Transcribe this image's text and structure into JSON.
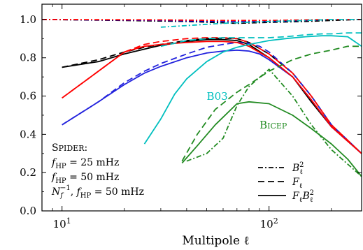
{
  "chart_data": {
    "type": "line",
    "title": "",
    "xlabel": "Multipole ℓ",
    "ylabel": "",
    "xscale": "log",
    "xlim": [
      8,
      280
    ],
    "ylim": [
      0.0,
      1.08
    ],
    "grid": false,
    "x_ticks": [
      {
        "value": 10,
        "label": "10¹"
      },
      {
        "value": 100,
        "label": "10²"
      }
    ],
    "y_ticks": [
      {
        "value": 0.0,
        "label": "0.0"
      },
      {
        "value": 0.2,
        "label": "0.2"
      },
      {
        "value": 0.4,
        "label": "0.4"
      },
      {
        "value": 0.6,
        "label": "0.6"
      },
      {
        "value": 0.8,
        "label": "0.8"
      },
      {
        "value": 1.0,
        "label": "1.0"
      }
    ],
    "series": [
      {
        "color": "#000000",
        "style": "dashdot",
        "x": [
          8,
          20,
          40,
          70,
          100,
          150,
          200,
          280
        ],
        "y": [
          1.0,
          0.995,
          0.99,
          0.98,
          0.985,
          0.99,
          0.995,
          1.0
        ]
      },
      {
        "color": "#000000",
        "style": "dashed",
        "x": [
          10,
          15,
          20,
          25,
          30,
          40,
          50,
          60,
          70,
          80,
          100,
          130,
          160,
          200,
          280
        ],
        "y": [
          0.75,
          0.79,
          0.83,
          0.855,
          0.87,
          0.89,
          0.9,
          0.902,
          0.9,
          0.88,
          0.82,
          0.72,
          0.6,
          0.45,
          0.3
        ]
      },
      {
        "color": "#000000",
        "style": "solid",
        "x": [
          10,
          15,
          20,
          25,
          30,
          40,
          50,
          60,
          70,
          80,
          100,
          130,
          160,
          200,
          280
        ],
        "y": [
          0.75,
          0.78,
          0.82,
          0.845,
          0.865,
          0.885,
          0.895,
          0.895,
          0.89,
          0.87,
          0.8,
          0.7,
          0.57,
          0.44,
          0.3
        ]
      },
      {
        "color": "#0000cc",
        "style": "dashdot",
        "x": [
          8,
          30,
          60,
          100,
          150,
          200,
          280
        ],
        "y": [
          1.0,
          0.995,
          0.99,
          0.99,
          0.995,
          1.0,
          1.0
        ]
      },
      {
        "color": "#2222dd",
        "style": "dashed",
        "x": [
          10,
          15,
          20,
          25,
          30,
          40,
          50,
          60,
          70,
          80,
          90,
          100,
          130,
          160,
          200,
          280
        ],
        "y": [
          0.45,
          0.57,
          0.67,
          0.73,
          0.77,
          0.82,
          0.855,
          0.87,
          0.88,
          0.875,
          0.86,
          0.83,
          0.72,
          0.6,
          0.45,
          0.3
        ]
      },
      {
        "color": "#2222dd",
        "style": "solid",
        "x": [
          10,
          15,
          20,
          25,
          30,
          40,
          50,
          60,
          70,
          80,
          90,
          100,
          130,
          160,
          200,
          280
        ],
        "y": [
          0.45,
          0.57,
          0.66,
          0.72,
          0.755,
          0.8,
          0.825,
          0.835,
          0.84,
          0.835,
          0.82,
          0.79,
          0.7,
          0.58,
          0.44,
          0.3
        ]
      },
      {
        "color": "#ff0000",
        "style": "dashdot",
        "x": [
          8,
          30,
          60,
          100,
          150,
          200,
          280
        ],
        "y": [
          1.0,
          0.998,
          0.995,
          0.995,
          0.998,
          1.0,
          1.0
        ]
      },
      {
        "color": "#ff0000",
        "style": "dashed",
        "x": [
          10,
          15,
          20,
          25,
          30,
          40,
          50,
          60,
          70,
          80,
          100,
          130,
          160,
          200,
          280
        ],
        "y": [
          0.59,
          0.73,
          0.83,
          0.87,
          0.885,
          0.9,
          0.905,
          0.905,
          0.9,
          0.88,
          0.82,
          0.72,
          0.6,
          0.45,
          0.3
        ]
      },
      {
        "color": "#ff0000",
        "style": "solid",
        "x": [
          10,
          15,
          20,
          25,
          30,
          40,
          50,
          60,
          70,
          80,
          100,
          130,
          160,
          200,
          280
        ],
        "y": [
          0.59,
          0.73,
          0.83,
          0.86,
          0.87,
          0.88,
          0.885,
          0.885,
          0.88,
          0.86,
          0.8,
          0.7,
          0.58,
          0.44,
          0.3
        ]
      },
      {
        "color": "#00bfbf",
        "style": "dashdot",
        "x": [
          30,
          60,
          100,
          150,
          200,
          280
        ],
        "y": [
          0.96,
          0.98,
          0.99,
          0.995,
          1.0,
          1.0
        ]
      },
      {
        "color": "#00bfbf",
        "style": "dashed",
        "x": [
          30,
          40,
          50,
          60,
          70,
          80,
          100,
          120,
          150,
          180,
          200,
          240,
          280
        ],
        "y": [
          0.86,
          0.89,
          0.9,
          0.905,
          0.905,
          0.905,
          0.905,
          0.91,
          0.92,
          0.925,
          0.925,
          0.93,
          0.93
        ]
      },
      {
        "color": "#00bfbf",
        "style": "solid",
        "x": [
          25,
          30,
          35,
          40,
          50,
          60,
          70,
          80,
          100,
          120,
          150,
          180,
          200,
          240,
          280
        ],
        "y": [
          0.35,
          0.48,
          0.61,
          0.69,
          0.78,
          0.83,
          0.855,
          0.87,
          0.89,
          0.9,
          0.91,
          0.915,
          0.915,
          0.91,
          0.86
        ]
      },
      {
        "color": "#228b22",
        "style": "dashdot",
        "x": [
          40,
          50,
          60,
          70,
          80,
          100,
          130,
          160,
          200,
          280
        ],
        "y": [
          0.26,
          0.3,
          0.38,
          0.55,
          0.65,
          0.74,
          0.6,
          0.45,
          0.32,
          0.18
        ]
      },
      {
        "color": "#228b22",
        "style": "dashed",
        "x": [
          38,
          45,
          55,
          70,
          80,
          100,
          130,
          160,
          200,
          240,
          280
        ],
        "y": [
          0.26,
          0.4,
          0.53,
          0.62,
          0.66,
          0.73,
          0.79,
          0.82,
          0.84,
          0.86,
          0.86
        ]
      },
      {
        "color": "#228b22",
        "style": "solid",
        "x": [
          38,
          45,
          55,
          70,
          80,
          100,
          130,
          160,
          200,
          240,
          280
        ],
        "y": [
          0.25,
          0.34,
          0.45,
          0.56,
          0.57,
          0.56,
          0.5,
          0.43,
          0.35,
          0.27,
          0.18
        ]
      }
    ],
    "annotations": [
      {
        "text": "B03",
        "x": 50,
        "y": 0.58,
        "color": "#00bfbf"
      },
      {
        "text": "BICEP",
        "x": 90,
        "y": 0.43,
        "color": "#228b22"
      }
    ],
    "spider_legend": [
      {
        "text": "SPIDER:",
        "color": "#000000"
      },
      {
        "text": "f_HP = 25 mHz",
        "color": "#000000"
      },
      {
        "text": "f_HP = 50 mHz",
        "color": "#2222dd"
      },
      {
        "text": "N_f^−1, f_HP = 50 mHz",
        "color": "#ff0000"
      }
    ],
    "style_legend": [
      {
        "style": "dashdot",
        "label": "Bℓ²"
      },
      {
        "style": "dashed",
        "label": "Fℓ"
      },
      {
        "style": "solid",
        "label": "FℓBℓ²"
      }
    ]
  }
}
